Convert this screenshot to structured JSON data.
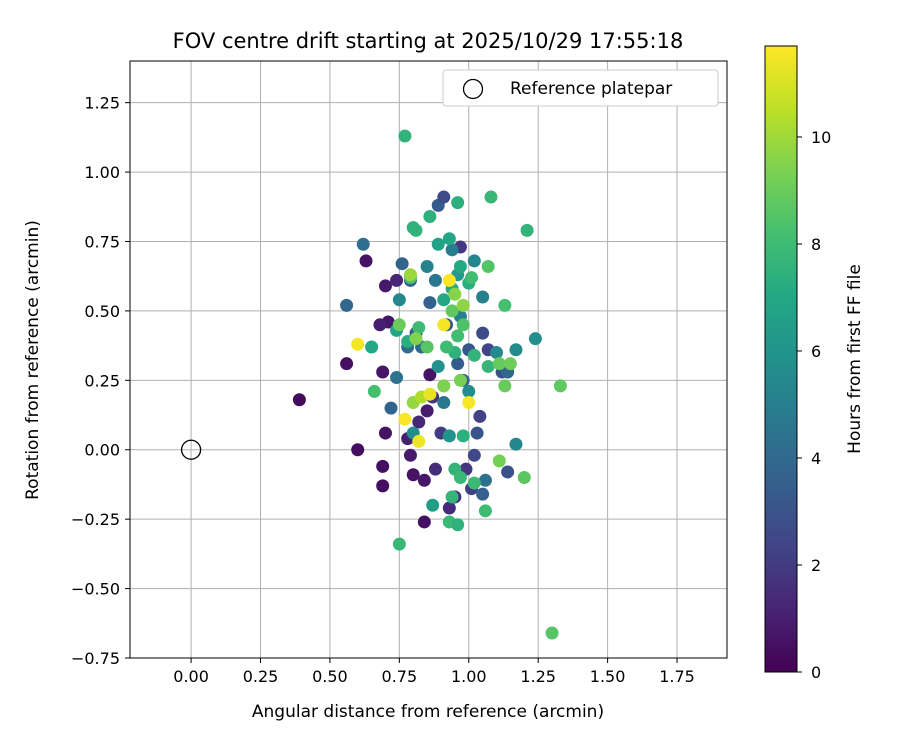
{
  "chart_data": {
    "type": "scatter",
    "title": "FOV centre drift starting at 2025/10/29 17:55:18",
    "xlabel": "Angular distance from reference (arcmin)",
    "ylabel": "Rotation from reference (arcmin)",
    "xlim": [
      -0.22,
      1.93
    ],
    "ylim": [
      -0.75,
      1.4
    ],
    "xticks": [
      "0.00",
      "0.25",
      "0.50",
      "0.75",
      "1.00",
      "1.25",
      "1.50",
      "1.75"
    ],
    "xtick_values": [
      0,
      0.25,
      0.5,
      0.75,
      1.0,
      1.25,
      1.5,
      1.75
    ],
    "yticks": [
      "−0.75",
      "−0.50",
      "−0.25",
      "0.00",
      "0.25",
      "0.50",
      "0.75",
      "1.00",
      "1.25"
    ],
    "ytick_values": [
      -0.75,
      -0.5,
      -0.25,
      0,
      0.25,
      0.5,
      0.75,
      1.0,
      1.25
    ],
    "grid": true,
    "legend": {
      "label": "Reference platepar",
      "location": "top-right"
    },
    "reference_point": {
      "x": 0.0,
      "y": 0.0
    },
    "colorbar": {
      "label": "Hours from first FF file",
      "colormap": "viridis",
      "range": [
        0,
        11.7
      ],
      "ticks": [
        "0",
        "2",
        "4",
        "6",
        "8",
        "10"
      ],
      "tick_values": [
        0,
        2,
        4,
        6,
        8,
        10
      ]
    },
    "points": [
      [
        0.39,
        0.18,
        0.3
      ],
      [
        0.56,
        0.31,
        0.5
      ],
      [
        0.6,
        0.0,
        0.4
      ],
      [
        0.63,
        0.68,
        0.6
      ],
      [
        0.69,
        -0.06,
        0.5
      ],
      [
        0.69,
        -0.13,
        0.4
      ],
      [
        0.7,
        0.06,
        0.6
      ],
      [
        0.69,
        0.28,
        0.7
      ],
      [
        0.7,
        0.59,
        0.8
      ],
      [
        0.71,
        0.46,
        0.7
      ],
      [
        0.68,
        0.45,
        1.0
      ],
      [
        0.74,
        0.61,
        1.2
      ],
      [
        0.78,
        0.04,
        1.0
      ],
      [
        0.79,
        -0.02,
        0.9
      ],
      [
        0.8,
        -0.09,
        0.6
      ],
      [
        0.82,
        0.1,
        1.3
      ],
      [
        0.84,
        -0.26,
        0.5
      ],
      [
        0.84,
        -0.11,
        0.7
      ],
      [
        0.86,
        0.27,
        0.6
      ],
      [
        0.85,
        0.14,
        0.9
      ],
      [
        0.87,
        0.19,
        1.8
      ],
      [
        0.88,
        -0.07,
        1.5
      ],
      [
        0.9,
        0.06,
        2.0
      ],
      [
        0.93,
        -0.21,
        1.4
      ],
      [
        0.95,
        -0.17,
        1.6
      ],
      [
        0.97,
        0.73,
        1.9
      ],
      [
        0.99,
        -0.07,
        1.8
      ],
      [
        1.01,
        -0.14,
        2.2
      ],
      [
        1.02,
        -0.02,
        2.5
      ],
      [
        1.04,
        0.12,
        2.3
      ],
      [
        1.05,
        0.42,
        2.6
      ],
      [
        1.07,
        0.36,
        2.4
      ],
      [
        1.12,
        0.28,
        2.8
      ],
      [
        1.14,
        -0.08,
        2.9
      ],
      [
        0.89,
        0.88,
        3.3
      ],
      [
        0.91,
        0.91,
        2.7
      ],
      [
        0.62,
        0.74,
        4.2
      ],
      [
        0.56,
        0.52,
        3.9
      ],
      [
        0.76,
        0.67,
        3.8
      ],
      [
        0.79,
        0.61,
        3.5
      ],
      [
        0.86,
        0.53,
        3.6
      ],
      [
        0.83,
        0.37,
        4.0
      ],
      [
        0.92,
        0.45,
        3.1
      ],
      [
        0.96,
        0.31,
        3.4
      ],
      [
        0.98,
        0.25,
        3.7
      ],
      [
        1.0,
        0.36,
        3.2
      ],
      [
        1.03,
        0.06,
        3.0
      ],
      [
        1.05,
        -0.16,
        3.6
      ],
      [
        1.06,
        -0.11,
        4.3
      ],
      [
        0.74,
        0.26,
        4.4
      ],
      [
        0.72,
        0.15,
        3.8
      ],
      [
        0.78,
        0.37,
        4.1
      ],
      [
        0.81,
        0.42,
        3.3
      ],
      [
        0.88,
        0.61,
        4.6
      ],
      [
        0.91,
        0.17,
        4.7
      ],
      [
        0.94,
        0.72,
        4.9
      ],
      [
        0.97,
        0.48,
        5.0
      ],
      [
        1.02,
        0.68,
        5.3
      ],
      [
        1.1,
        0.35,
        5.5
      ],
      [
        1.14,
        0.28,
        3.9
      ],
      [
        1.17,
        0.36,
        5.6
      ],
      [
        1.17,
        0.02,
        5.4
      ],
      [
        1.24,
        0.4,
        5.8
      ],
      [
        1.05,
        0.55,
        5.1
      ],
      [
        0.85,
        0.66,
        5.2
      ],
      [
        0.75,
        0.54,
        5.4
      ],
      [
        0.8,
        0.06,
        5.6
      ],
      [
        0.89,
        0.3,
        5.9
      ],
      [
        1.0,
        0.21,
        5.7
      ],
      [
        0.93,
        0.05,
        6.0
      ],
      [
        0.96,
        0.63,
        6.2
      ],
      [
        0.87,
        -0.2,
        6.5
      ],
      [
        0.74,
        0.43,
        6.8
      ],
      [
        0.89,
        0.74,
        6.7
      ],
      [
        0.93,
        0.76,
        6.9
      ],
      [
        0.86,
        0.84,
        7.4
      ],
      [
        0.91,
        0.54,
        7.0
      ],
      [
        0.94,
        0.58,
        7.2
      ],
      [
        0.97,
        0.66,
        7.1
      ],
      [
        1.0,
        0.6,
        7.3
      ],
      [
        0.95,
        0.35,
        7.5
      ],
      [
        1.02,
        0.34,
        7.6
      ],
      [
        1.07,
        0.3,
        7.7
      ],
      [
        0.98,
        0.05,
        7.4
      ],
      [
        0.95,
        -0.07,
        7.6
      ],
      [
        0.97,
        -0.1,
        7.8
      ],
      [
        1.02,
        -0.12,
        7.9
      ],
      [
        0.93,
        -0.26,
        7.9
      ],
      [
        0.96,
        -0.27,
        7.5
      ],
      [
        0.94,
        -0.17,
        7.7
      ],
      [
        0.92,
        0.37,
        8.0
      ],
      [
        0.96,
        0.41,
        8.1
      ],
      [
        0.81,
        0.79,
        7.7
      ],
      [
        0.8,
        0.8,
        7.5
      ],
      [
        0.77,
        1.13,
        7.6
      ],
      [
        1.08,
        0.91,
        7.8
      ],
      [
        0.96,
        0.89,
        7.4
      ],
      [
        1.21,
        0.79,
        7.6
      ],
      [
        0.75,
        -0.34,
        7.8
      ],
      [
        1.06,
        -0.22,
        8.0
      ],
      [
        0.65,
        0.37,
        7.0
      ],
      [
        0.66,
        0.21,
        8.2
      ],
      [
        0.78,
        0.39,
        7.3
      ],
      [
        0.79,
        0.62,
        8.3
      ],
      [
        0.82,
        0.44,
        8.0
      ],
      [
        0.85,
        0.37,
        8.6
      ],
      [
        0.94,
        0.5,
        8.8
      ],
      [
        0.98,
        0.45,
        8.4
      ],
      [
        1.01,
        0.62,
        8.1
      ],
      [
        1.07,
        0.66,
        8.5
      ],
      [
        1.13,
        0.52,
        8.2
      ],
      [
        1.11,
        0.31,
        8.9
      ],
      [
        1.13,
        0.23,
        9.0
      ],
      [
        1.15,
        0.31,
        9.1
      ],
      [
        1.2,
        -0.1,
        8.7
      ],
      [
        1.11,
        -0.04,
        9.2
      ],
      [
        1.3,
        -0.66,
        8.6
      ],
      [
        1.33,
        0.23,
        8.8
      ],
      [
        0.91,
        0.23,
        9.4
      ],
      [
        0.97,
        0.25,
        9.3
      ],
      [
        0.75,
        0.45,
        9.0
      ],
      [
        0.81,
        0.4,
        9.5
      ],
      [
        0.95,
        0.56,
        9.6
      ],
      [
        0.98,
        0.52,
        9.7
      ],
      [
        0.8,
        0.17,
        9.8
      ],
      [
        0.83,
        0.19,
        10.3
      ],
      [
        0.79,
        0.63,
        9.9
      ],
      [
        0.6,
        0.38,
        11.5
      ],
      [
        0.77,
        0.11,
        11.6
      ],
      [
        0.82,
        0.03,
        11.4
      ],
      [
        0.86,
        0.2,
        11.3
      ],
      [
        0.91,
        0.45,
        11.5
      ],
      [
        0.93,
        0.61,
        11.7
      ],
      [
        1.0,
        0.17,
        11.6
      ]
    ]
  }
}
